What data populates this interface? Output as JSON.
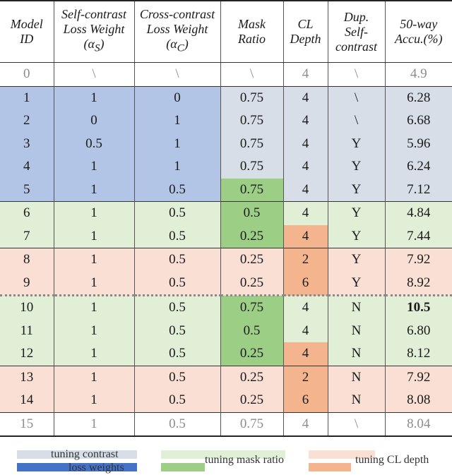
{
  "headers": [
    [
      "Model",
      "ID"
    ],
    [
      "Self-contrast",
      "Loss Weight",
      "(α",
      "S",
      ")"
    ],
    [
      "Cross-contrast",
      "Loss Weight",
      "(α",
      "C",
      ")"
    ],
    [
      "Mask",
      "Ratio"
    ],
    [
      "CL",
      "Depth"
    ],
    [
      "Dup.",
      "Self-",
      "contrast"
    ],
    [
      "50-way",
      "Accu.(%)"
    ]
  ],
  "rows": [
    {
      "cells": [
        "0",
        "\\",
        "\\",
        "\\",
        "4",
        "\\",
        "4.9"
      ]
    },
    {
      "cells": [
        "1",
        "1",
        "0",
        "0.75",
        "4",
        "\\",
        "6.28"
      ]
    },
    {
      "cells": [
        "2",
        "0",
        "1",
        "0.75",
        "4",
        "\\",
        "6.68"
      ]
    },
    {
      "cells": [
        "3",
        "0.5",
        "1",
        "0.75",
        "4",
        "Y",
        "5.96"
      ]
    },
    {
      "cells": [
        "4",
        "1",
        "1",
        "0.75",
        "4",
        "Y",
        "6.24"
      ]
    },
    {
      "cells": [
        "5",
        "1",
        "0.5",
        "0.75",
        "4",
        "Y",
        "7.12"
      ]
    },
    {
      "cells": [
        "6",
        "1",
        "0.5",
        "0.5",
        "4",
        "Y",
        "4.84"
      ]
    },
    {
      "cells": [
        "7",
        "1",
        "0.5",
        "0.25",
        "4",
        "Y",
        "7.44"
      ]
    },
    {
      "cells": [
        "8",
        "1",
        "0.5",
        "0.25",
        "2",
        "Y",
        "7.92"
      ]
    },
    {
      "cells": [
        "9",
        "1",
        "0.5",
        "0.25",
        "6",
        "Y",
        "8.92"
      ]
    },
    {
      "cells": [
        "10",
        "1",
        "0.5",
        "0.75",
        "4",
        "N",
        "10.5"
      ]
    },
    {
      "cells": [
        "11",
        "1",
        "0.5",
        "0.5",
        "4",
        "N",
        "6.80"
      ]
    },
    {
      "cells": [
        "12",
        "1",
        "0.5",
        "0.25",
        "4",
        "N",
        "8.12"
      ]
    },
    {
      "cells": [
        "13",
        "1",
        "0.5",
        "0.25",
        "2",
        "N",
        "7.92"
      ]
    },
    {
      "cells": [
        "14",
        "1",
        "0.5",
        "0.25",
        "6",
        "N",
        "8.08"
      ]
    },
    {
      "cells": [
        "15",
        "1",
        "0.5",
        "0.75",
        "4",
        "\\",
        "8.04"
      ]
    }
  ],
  "legend": {
    "contrast_line1": "tuning contrast",
    "contrast_line2": "loss weights",
    "mask": "tuning mask ratio",
    "depth": "tuning CL depth"
  },
  "colors": {
    "blue_dark": "#b3c5e6",
    "blue_light": "#d7dee8",
    "green_dark": "#9ccf85",
    "green_light": "#e1efd7",
    "orange_dark": "#f4b58e",
    "orange_light": "#fadfd4"
  }
}
